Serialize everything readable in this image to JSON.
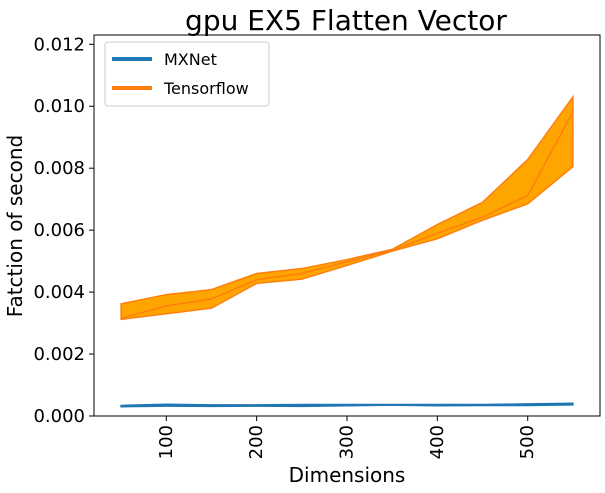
{
  "chart_data": {
    "type": "line",
    "title": "gpu EX5 Flatten Vector",
    "xlabel": "Dimensions",
    "ylabel": "Fatction of second",
    "xlim": [
      20,
      580
    ],
    "ylim": [
      0,
      0.0123
    ],
    "xticks": [
      100,
      200,
      300,
      400,
      500
    ],
    "xtick_labels": [
      "100",
      "200",
      "300",
      "400",
      "500"
    ],
    "yticks": [
      0,
      0.002,
      0.004,
      0.006,
      0.008,
      0.01,
      0.012
    ],
    "ytick_labels": [
      "0.000",
      "0.002",
      "0.004",
      "0.006",
      "0.008",
      "0.010",
      "0.012"
    ],
    "x": [
      50,
      100,
      150,
      200,
      250,
      300,
      350,
      400,
      450,
      500,
      550
    ],
    "grid": false,
    "legend_position": "top-left",
    "series": [
      {
        "name": "MXNet",
        "color": "#1f77b4",
        "values": [
          0.00032,
          0.00035,
          0.00033,
          0.00034,
          0.00034,
          0.00035,
          0.00036,
          0.00035,
          0.00035,
          0.00036,
          0.00038
        ],
        "lower": [
          0.0003,
          0.00032,
          0.00031,
          0.00032,
          0.00031,
          0.00033,
          0.00035,
          0.00033,
          0.00034,
          0.00034,
          0.00036
        ],
        "upper": [
          0.00034,
          0.00038,
          0.00036,
          0.00036,
          0.00037,
          0.00037,
          0.00037,
          0.00037,
          0.00037,
          0.00039,
          0.00041
        ]
      },
      {
        "name": "Tensorflow",
        "color": "#ff7f0e",
        "band_color": "#ffa500",
        "values": [
          0.00316,
          0.00355,
          0.00378,
          0.0044,
          0.0046,
          0.00498,
          0.00535,
          0.0059,
          0.00642,
          0.00712,
          0.00982
        ],
        "lower": [
          0.00312,
          0.0033,
          0.00348,
          0.00428,
          0.00442,
          0.00486,
          0.00532,
          0.00572,
          0.00632,
          0.00685,
          0.00805
        ],
        "upper": [
          0.00362,
          0.00392,
          0.00408,
          0.0046,
          0.00476,
          0.00505,
          0.00538,
          0.00618,
          0.0069,
          0.00828,
          0.0103
        ]
      }
    ]
  }
}
